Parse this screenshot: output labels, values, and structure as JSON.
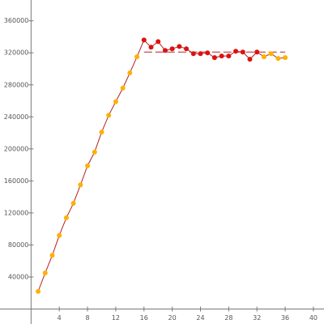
{
  "chart_data": {
    "type": "line",
    "x": [
      1,
      2,
      3,
      4,
      5,
      6,
      7,
      8,
      9,
      10,
      11,
      12,
      13,
      14,
      15,
      16,
      17,
      18,
      19,
      20,
      21,
      22,
      23,
      24,
      25,
      26,
      27,
      28,
      29,
      30,
      31,
      32,
      33,
      34,
      35,
      36
    ],
    "series": [
      {
        "color": "#b22222",
        "values": [
          22000,
          45000,
          67000,
          92000,
          114000,
          132000,
          155000,
          179000,
          196000,
          221000,
          242000,
          259000,
          276000,
          295000,
          315000,
          336000,
          327000,
          334000,
          323000,
          325000,
          328000,
          325000,
          319000,
          319000,
          320000,
          314000,
          316000,
          316000,
          322000,
          321000,
          312000,
          321000,
          315000,
          319000,
          313000,
          314000
        ],
        "point_colors": [
          "#ffb000",
          "#ffb000",
          "#ffb000",
          "#ffb000",
          "#ffb000",
          "#ffb000",
          "#ffb000",
          "#ffb000",
          "#ffb000",
          "#ffb000",
          "#ffb000",
          "#ffb000",
          "#ffb000",
          "#ffb000",
          "#ffb000",
          "#dd1111",
          "#dd1111",
          "#dd1111",
          "#dd1111",
          "#dd1111",
          "#dd1111",
          "#dd1111",
          "#dd1111",
          "#dd1111",
          "#dd1111",
          "#dd1111",
          "#dd1111",
          "#dd1111",
          "#dd1111",
          "#dd1111",
          "#dd1111",
          "#dd1111",
          "#ffb000",
          "#ffb000",
          "#ffb000",
          "#ffb000"
        ]
      }
    ],
    "reference_line": {
      "value": 321000,
      "from": 16,
      "to": 36,
      "color": "#b22222"
    },
    "xlim": [
      -4.4,
      41.5
    ],
    "ylim": [
      0,
      386000
    ],
    "xticks": [
      4,
      8,
      12,
      16,
      20,
      24,
      28,
      32,
      36,
      40
    ],
    "yticks": [
      40000,
      80000,
      120000,
      160000,
      200000,
      240000,
      280000,
      320000,
      360000
    ],
    "grid": false
  }
}
